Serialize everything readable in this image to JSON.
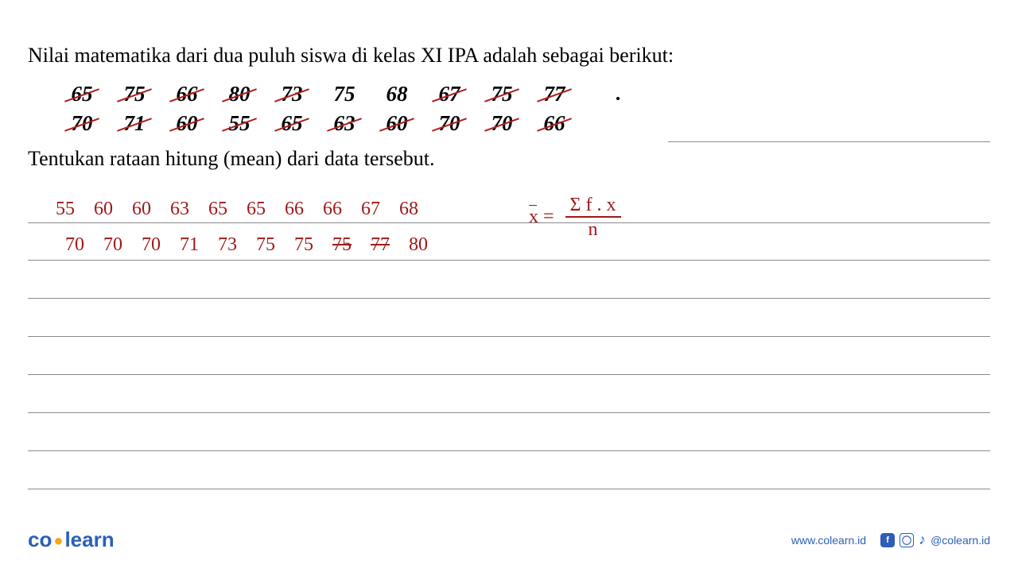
{
  "problem": {
    "intro": "Nilai matematika dari dua puluh siswa di kelas XI IPA adalah sebagai berikut:",
    "question": "Tentukan rataan hitung (mean) dari data tersebut.",
    "row1": [
      "65",
      "75",
      "66",
      "80",
      "73",
      "75",
      "68",
      "67",
      "75",
      "77"
    ],
    "row1_struck": [
      true,
      true,
      true,
      true,
      true,
      false,
      false,
      true,
      true,
      true
    ],
    "row2": [
      "70",
      "71",
      "60",
      "55",
      "65",
      "63",
      "60",
      "70",
      "70",
      "66"
    ],
    "row2_struck": [
      true,
      true,
      true,
      true,
      true,
      true,
      true,
      true,
      true,
      true
    ]
  },
  "handwritten": {
    "sorted1": [
      "55",
      "60",
      "60",
      "63",
      "65",
      "65",
      "66",
      "66",
      "67",
      "68"
    ],
    "sorted2": [
      "70",
      "70",
      "70",
      "71",
      "73",
      "75",
      "75",
      "75",
      "77",
      "80"
    ],
    "sorted2_struck": [
      false,
      false,
      false,
      false,
      false,
      false,
      false,
      true,
      true,
      false
    ],
    "formula_lhs": "x",
    "formula_eq": "=",
    "formula_num": "Σ f . x",
    "formula_den": "n"
  },
  "ruling": {
    "short_tops": [
      178
    ],
    "full_tops": [
      280,
      327,
      375,
      423,
      471,
      519,
      567,
      615
    ]
  },
  "footer": {
    "logo_left": "co",
    "logo_right": "learn",
    "url": "www.colearn.id",
    "handle": "@colearn.id"
  },
  "colors": {
    "text": "#000000",
    "handwriting": "#a01818",
    "rule": "#8a8a8a",
    "brand": "#2b5fb8",
    "accent": "#f5a623",
    "background": "#ffffff"
  }
}
